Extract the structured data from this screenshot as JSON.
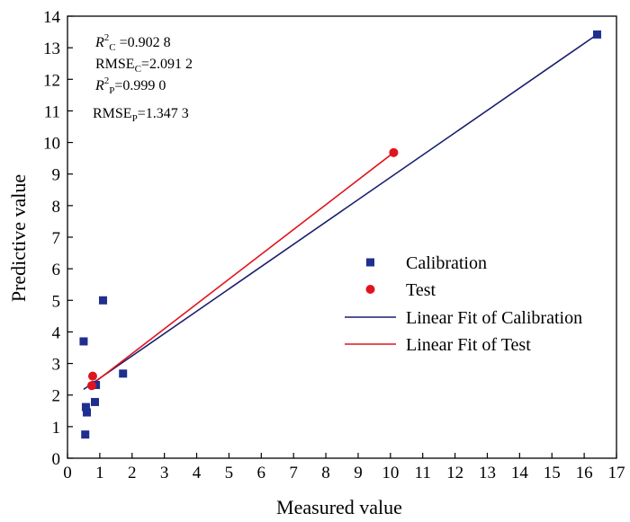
{
  "chart_data": {
    "type": "scatter",
    "xlabel": "Measured value",
    "ylabel": "Predictive value",
    "xlim": [
      0,
      17
    ],
    "ylim": [
      0,
      14
    ],
    "xticks": [
      "0",
      "1",
      "2",
      "3",
      "4",
      "5",
      "6",
      "7",
      "8",
      "9",
      "10",
      "11",
      "12",
      "13",
      "14",
      "15",
      "16",
      "17"
    ],
    "yticks": [
      "0",
      "1",
      "2",
      "3",
      "4",
      "5",
      "6",
      "7",
      "8",
      "9",
      "10",
      "11",
      "12",
      "13",
      "14"
    ],
    "grid": false,
    "legend_position": "right",
    "series": [
      {
        "name": "Calibration",
        "marker": "square",
        "color": "#1f2f8f",
        "points": [
          {
            "x": 0.5,
            "y": 3.7
          },
          {
            "x": 0.55,
            "y": 0.75
          },
          {
            "x": 0.57,
            "y": 1.62
          },
          {
            "x": 0.6,
            "y": 1.45
          },
          {
            "x": 0.85,
            "y": 1.78
          },
          {
            "x": 0.88,
            "y": 2.32
          },
          {
            "x": 1.1,
            "y": 5.0
          },
          {
            "x": 1.72,
            "y": 2.68
          },
          {
            "x": 16.4,
            "y": 13.42
          }
        ]
      },
      {
        "name": "Test",
        "marker": "circle",
        "color": "#e0141e",
        "points": [
          {
            "x": 0.75,
            "y": 2.3
          },
          {
            "x": 0.78,
            "y": 2.6
          },
          {
            "x": 10.1,
            "y": 9.68
          }
        ]
      }
    ],
    "fits": [
      {
        "name": "Linear Fit of Calibration",
        "color": "#1a1f6e",
        "from": [
          0.5,
          2.18
        ],
        "to": [
          16.4,
          13.42
        ]
      },
      {
        "name": "Linear Fit of Test",
        "color": "#e0141e",
        "from": [
          0.75,
          2.33
        ],
        "to": [
          10.1,
          9.68
        ]
      }
    ],
    "annotations": [
      {
        "prefix": "R",
        "sup": "2",
        "sub": "C",
        "suffix": " =0.902 8"
      },
      {
        "prefix": "RMSE",
        "sup": "",
        "sub": "C",
        "suffix": "=2.091 2"
      },
      {
        "prefix": "R",
        "sup": "2",
        "sub": "P",
        "suffix": "=0.999 0"
      },
      {
        "prefix": "RMSE",
        "sup": "",
        "sub": "P",
        "suffix": "=1.347 3"
      }
    ]
  }
}
